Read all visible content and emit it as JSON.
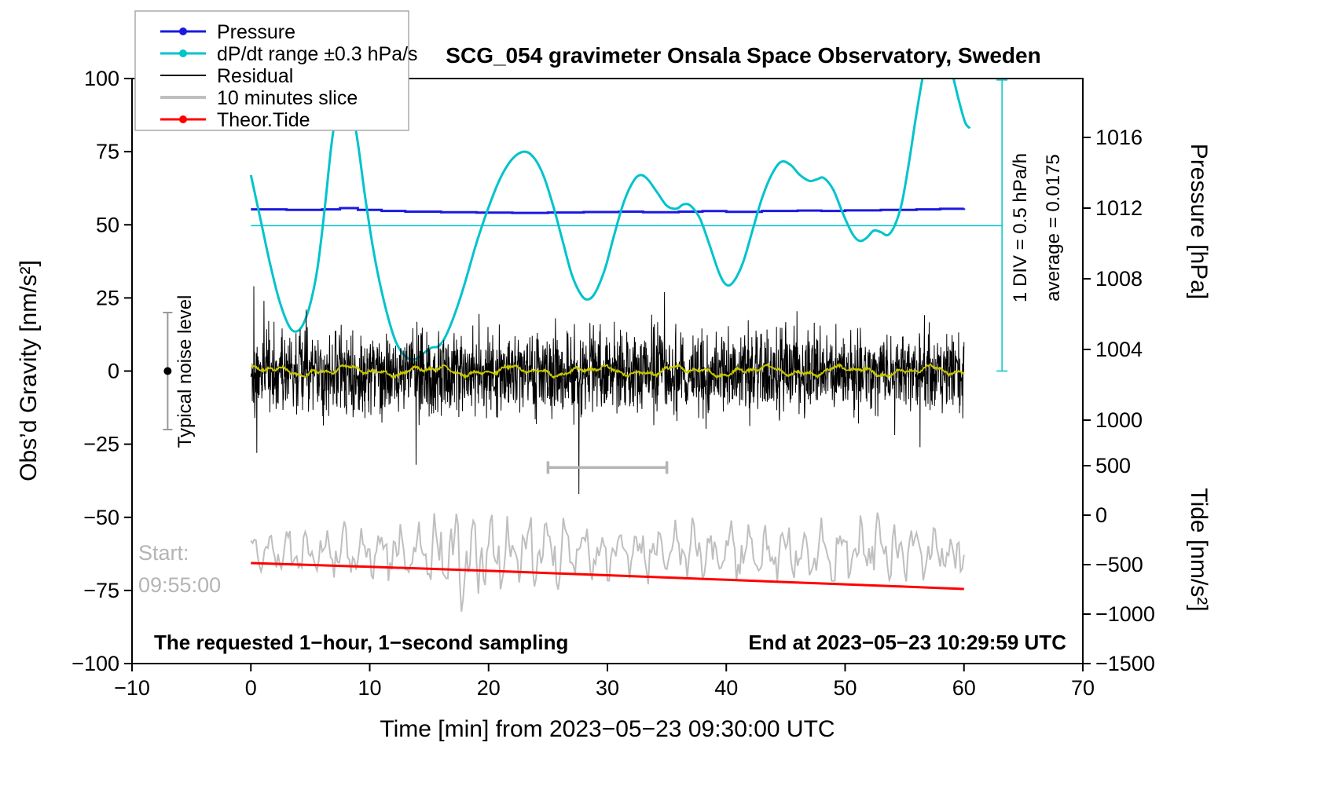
{
  "colors": {
    "pressure": "#1a1ae0",
    "dpdt": "#00c3cc",
    "residual": "#000000",
    "slice": "#bfbfbf",
    "tide": "#ff0000",
    "smoothed": "#c8c800",
    "gray_text": "#b4b4b4",
    "marker_gray": "#999999",
    "frame": "#000000"
  },
  "chart_data": {
    "type": "line",
    "title": "SCG_054 gravimeter Onsala Space Observatory, Sweden",
    "xlabel": "Time [min] from 2023−05−23 09:30:00 UTC",
    "axes": {
      "x": {
        "min": -10,
        "max": 70,
        "tick_values": [
          -10,
          0,
          10,
          20,
          30,
          40,
          50,
          60,
          70
        ],
        "tick_labels": [
          "−10",
          "0",
          "10",
          "20",
          "30",
          "40",
          "50",
          "60",
          "70"
        ]
      },
      "gravity": {
        "label": "Obs’d Gravity [nm/s²]",
        "min": -100,
        "max": 100,
        "tick_values": [
          100,
          75,
          50,
          25,
          0,
          -25,
          -50,
          -75,
          -100
        ],
        "tick_labels": [
          "100",
          "75",
          "50",
          "25",
          "0",
          "−25",
          "−50",
          "−75",
          "−100"
        ]
      },
      "pressure": {
        "label": "Pressure [hPa]",
        "tick_values": [
          1016,
          1012,
          1008,
          1004,
          1000
        ],
        "tick_labels": [
          "1016",
          "1012",
          "1008",
          "1004",
          "1000"
        ]
      },
      "tide": {
        "label": "Tide [nm/s²]",
        "tick_values": [
          500,
          0,
          -500,
          -1000,
          -1500
        ],
        "tick_labels": [
          "500",
          "0",
          "−500",
          "−1000",
          "−1500"
        ]
      }
    },
    "legend": {
      "items": [
        {
          "label": "Pressure",
          "color": "#1a1ae0",
          "marker": true,
          "width": 3
        },
        {
          "label": "dP/dt range ±0.3 hPa/s",
          "color": "#00c3cc",
          "marker": true,
          "width": 3
        },
        {
          "label": "Residual",
          "color": "#000000",
          "marker": false,
          "width": 2
        },
        {
          "label": "10 minutes slice",
          "color": "#bfbfbf",
          "marker": false,
          "width": 4
        },
        {
          "label": "Theor.Tide",
          "color": "#ff0000",
          "marker": true,
          "width": 3
        }
      ]
    },
    "series": {
      "pressure_hpa": {
        "name": "Pressure",
        "axis": "pressure",
        "step": true,
        "points": [
          [
            0,
            1011.93
          ],
          [
            3,
            1011.9
          ],
          [
            6,
            1011.93
          ],
          [
            7.5,
            1012.0
          ],
          [
            9,
            1011.9
          ],
          [
            11,
            1011.84
          ],
          [
            13,
            1011.8
          ],
          [
            16,
            1011.77
          ],
          [
            19,
            1011.74
          ],
          [
            22,
            1011.73
          ],
          [
            25,
            1011.75
          ],
          [
            28,
            1011.78
          ],
          [
            31,
            1011.8
          ],
          [
            33,
            1011.77
          ],
          [
            36,
            1011.8
          ],
          [
            38,
            1011.83
          ],
          [
            40,
            1011.79
          ],
          [
            43,
            1011.84
          ],
          [
            46,
            1011.86
          ],
          [
            48,
            1011.84
          ],
          [
            50,
            1011.87
          ],
          [
            53,
            1011.9
          ],
          [
            56,
            1011.93
          ],
          [
            58,
            1011.96
          ],
          [
            60,
            1011.98
          ]
        ]
      },
      "dpdt": {
        "name": "dP/dt range ±0.3 hPa/s",
        "axis": "gravity_display",
        "points": [
          [
            0,
            67
          ],
          [
            0.8,
            52
          ],
          [
            1.6,
            37
          ],
          [
            2.4,
            24
          ],
          [
            3.2,
            15.5
          ],
          [
            3.8,
            13.5
          ],
          [
            4.4,
            16
          ],
          [
            5,
            23
          ],
          [
            5.6,
            35
          ],
          [
            6.2,
            55
          ],
          [
            6.8,
            78
          ],
          [
            7.4,
            93
          ],
          [
            7.9,
            97
          ],
          [
            8.4,
            92
          ],
          [
            9,
            78
          ],
          [
            9.6,
            60
          ],
          [
            10.2,
            44
          ],
          [
            10.8,
            31
          ],
          [
            11.5,
            19
          ],
          [
            12.2,
            10
          ],
          [
            13,
            5
          ],
          [
            13.8,
            4
          ],
          [
            14.5,
            6
          ],
          [
            15.2,
            8
          ],
          [
            15.8,
            8.5
          ],
          [
            16.4,
            12
          ],
          [
            17.2,
            20
          ],
          [
            18,
            30
          ],
          [
            19,
            44
          ],
          [
            20,
            56
          ],
          [
            21,
            66
          ],
          [
            22,
            72.5
          ],
          [
            23,
            75
          ],
          [
            23.8,
            73
          ],
          [
            24.6,
            67
          ],
          [
            25.4,
            57
          ],
          [
            26.2,
            45
          ],
          [
            27,
            33
          ],
          [
            27.8,
            26
          ],
          [
            28.4,
            24.5
          ],
          [
            29,
            27
          ],
          [
            29.8,
            35
          ],
          [
            30.6,
            47
          ],
          [
            31.4,
            58
          ],
          [
            32.2,
            65
          ],
          [
            32.8,
            67
          ],
          [
            33.4,
            65.5
          ],
          [
            34.2,
            61
          ],
          [
            35,
            56.5
          ],
          [
            35.8,
            55.5
          ],
          [
            36.4,
            57
          ],
          [
            37,
            56.5
          ],
          [
            37.8,
            52
          ],
          [
            38.6,
            43
          ],
          [
            39.4,
            33.5
          ],
          [
            40,
            29.5
          ],
          [
            40.6,
            30.5
          ],
          [
            41.4,
            37
          ],
          [
            42.2,
            48
          ],
          [
            43,
            59
          ],
          [
            43.8,
            67
          ],
          [
            44.6,
            71.5
          ],
          [
            45.4,
            70.5
          ],
          [
            46.2,
            67
          ],
          [
            47,
            65
          ],
          [
            47.6,
            65.5
          ],
          [
            48.2,
            66
          ],
          [
            49,
            62
          ],
          [
            49.8,
            54
          ],
          [
            50.6,
            47
          ],
          [
            51.2,
            44.5
          ],
          [
            51.8,
            45.5
          ],
          [
            52.4,
            48
          ],
          [
            53,
            47.5
          ],
          [
            53.6,
            46.5
          ],
          [
            54.2,
            50
          ],
          [
            54.8,
            58
          ],
          [
            55.4,
            72
          ],
          [
            56,
            88
          ],
          [
            56.6,
            102
          ],
          [
            57.2,
            112
          ],
          [
            57.8,
            116
          ],
          [
            58.4,
            112
          ],
          [
            59,
            102
          ],
          [
            59.6,
            92
          ],
          [
            60.1,
            85
          ],
          [
            60.5,
            83
          ]
        ]
      },
      "residual": {
        "name": "Residual",
        "axis": "gravity",
        "generator": {
          "seed": 1337,
          "t_start": 0,
          "t_end": 60,
          "samples": 2400,
          "mean": 0,
          "std": 7,
          "clip": 24,
          "spikes": [
            [
              0.25,
              29
            ],
            [
              0.5,
              -28
            ],
            [
              1.1,
              24
            ],
            [
              13.9,
              -32
            ],
            [
              27.6,
              -42
            ],
            [
              34.8,
              27
            ],
            [
              56.3,
              -26
            ]
          ]
        }
      },
      "residual_smoothed": {
        "name": "Residual (smoothed)",
        "axis": "gravity",
        "generator": {
          "seed": 7,
          "t_start": 0,
          "t_end": 60,
          "samples": 1200,
          "mean": 0,
          "amplitude": 2.5
        }
      },
      "slice_10min": {
        "name": "10 minutes slice",
        "axis": "gravity",
        "generator": {
          "seed": 2024,
          "t_start": 0,
          "t_end": 60,
          "samples": 420,
          "center": -62,
          "envelope": [
            [
              0,
              7
            ],
            [
              5,
              8
            ],
            [
              10,
              8
            ],
            [
              14,
              10
            ],
            [
              16,
              14
            ],
            [
              18,
              17
            ],
            [
              20,
              14
            ],
            [
              22,
              10
            ],
            [
              25,
              12
            ],
            [
              28,
              10
            ],
            [
              32,
              9
            ],
            [
              36,
              9
            ],
            [
              40,
              10
            ],
            [
              44,
              9
            ],
            [
              48,
              9
            ],
            [
              51,
              12
            ],
            [
              54,
              9
            ],
            [
              57,
              8
            ],
            [
              60,
              9
            ]
          ]
        }
      },
      "theor_tide": {
        "name": "Theor.Tide",
        "axis": "tide",
        "points": [
          [
            0,
            -484
          ],
          [
            5,
            -503
          ],
          [
            10,
            -522
          ],
          [
            15,
            -542
          ],
          [
            20,
            -563
          ],
          [
            25,
            -585
          ],
          [
            30,
            -607
          ],
          [
            35,
            -630
          ],
          [
            40,
            -653
          ],
          [
            45,
            -676
          ],
          [
            50,
            -699
          ],
          [
            55,
            -722
          ],
          [
            60,
            -746
          ]
        ]
      }
    },
    "annotations": {
      "average_line_gravity": 49.7,
      "average_line_t": [
        0,
        63.2
      ],
      "div_bar": {
        "t": 63.2,
        "g_from": 0,
        "g_to": 99.5
      },
      "div_label": "1 DIV = 0.5 hPa/h",
      "average_label": "average = 0.0175",
      "noise_marker": {
        "label": "Typical noise level",
        "t": -7,
        "g": 0,
        "halfspan": 20
      },
      "slice_scalebar": {
        "t_from": 25,
        "t_to": 35,
        "g": -33
      },
      "start_label": {
        "line1": "Start:",
        "line2": "09:55:00"
      },
      "sampling_note": "The requested 1−hour, 1−second sampling",
      "end_note": "End at 2023−05−23 10:29:59 UTC"
    }
  }
}
